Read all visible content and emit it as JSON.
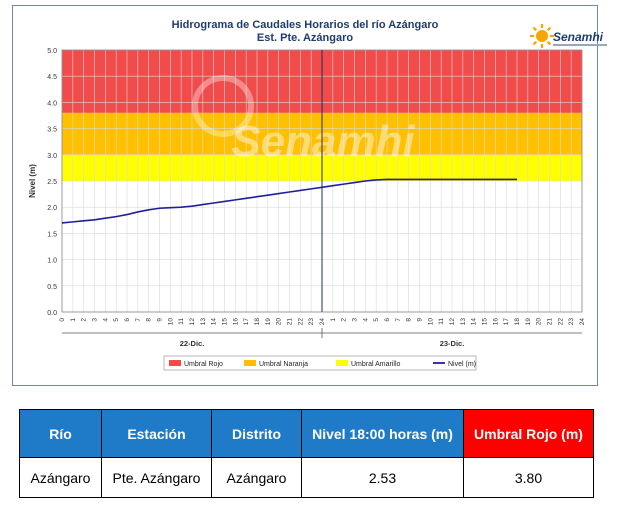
{
  "chart_data": {
    "type": "line",
    "title": "Hidrograma de Caudales Horarios del río Azángaro",
    "subtitle": "Est. Pte. Azángaro",
    "ylabel": "Nivel (m)",
    "xlabel": "",
    "ylim": [
      0,
      5
    ],
    "yticks": [
      "0.0",
      "0.5",
      "1.0",
      "1.5",
      "2.0",
      "2.5",
      "3.0",
      "3.5",
      "4.0",
      "4.5",
      "5.0"
    ],
    "xticks": [
      "0",
      "1",
      "2",
      "3",
      "4",
      "5",
      "6",
      "7",
      "8",
      "9",
      "10",
      "11",
      "12",
      "13",
      "14",
      "15",
      "16",
      "17",
      "18",
      "19",
      "20",
      "21",
      "22",
      "23",
      "24",
      "1",
      "2",
      "3",
      "4",
      "5",
      "6",
      "7",
      "8",
      "9",
      "10",
      "11",
      "12",
      "13",
      "14",
      "15",
      "16",
      "17",
      "18",
      "19",
      "20",
      "21",
      "22",
      "23",
      "24"
    ],
    "day_labels": [
      "22-Dic.",
      "23-Dic."
    ],
    "grid": true,
    "legend_position": "bottom",
    "thresholds": [
      {
        "name": "Umbral Rojo",
        "from": 3.8,
        "to": 5.0,
        "color": "#f24b4b"
      },
      {
        "name": "Umbral Naranja",
        "from": 3.0,
        "to": 3.8,
        "color": "#ffc000"
      },
      {
        "name": "Umbral Amarillo",
        "from": 2.5,
        "to": 3.0,
        "color": "#ffff00"
      }
    ],
    "series": [
      {
        "name": "Nivel (m)",
        "color": "#1f1f9a",
        "x": [
          0,
          1,
          2,
          3,
          4,
          5,
          6,
          7,
          8,
          9,
          10,
          11,
          12,
          13,
          14,
          15,
          16,
          17,
          18,
          19,
          20,
          21,
          22,
          23,
          24,
          25,
          26,
          27,
          28,
          29,
          30,
          31,
          32,
          33,
          34,
          35,
          36,
          37,
          38,
          39,
          40,
          41,
          42
        ],
        "values": [
          1.7,
          1.72,
          1.74,
          1.76,
          1.79,
          1.82,
          1.86,
          1.91,
          1.95,
          1.98,
          1.99,
          2.0,
          2.02,
          2.05,
          2.08,
          2.11,
          2.14,
          2.17,
          2.2,
          2.23,
          2.26,
          2.29,
          2.32,
          2.35,
          2.38,
          2.41,
          2.44,
          2.47,
          2.5,
          2.52,
          2.53,
          2.53,
          2.53,
          2.53,
          2.53,
          2.53,
          2.53,
          2.53,
          2.53,
          2.53,
          2.53,
          2.53,
          2.53
        ]
      }
    ],
    "current_time_index": 24
  },
  "watermark": "Senamhi",
  "logo_text": "Senamhi",
  "table": {
    "headers": [
      "Río",
      "Estación",
      "Distrito",
      "Nivel  18:00 horas (m)",
      "Umbral Rojo (m)"
    ],
    "row": [
      "Azángaro",
      "Pte. Azángaro",
      "Azángaro",
      "2.53",
      "3.80"
    ]
  }
}
